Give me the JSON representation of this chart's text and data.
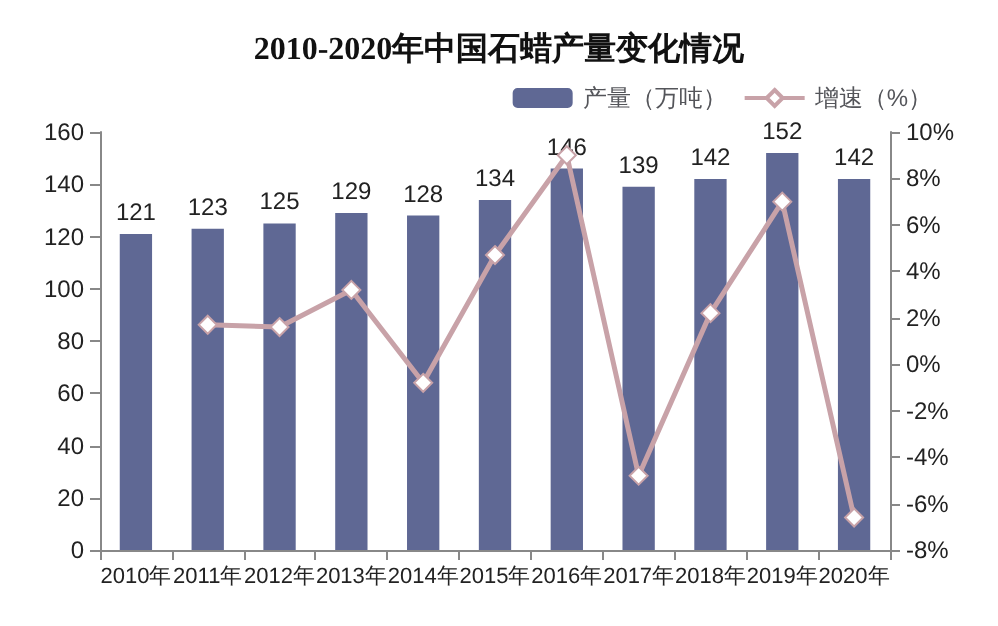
{
  "chart_data": {
    "type": "bar",
    "title": "2010-2020年中国石蜡产量变化情况",
    "categories": [
      "2010年",
      "2011年",
      "2012年",
      "2013年",
      "2014年",
      "2015年",
      "2016年",
      "2017年",
      "2018年",
      "2019年",
      "2020年"
    ],
    "series": [
      {
        "name": "产量（万吨）",
        "color": "#5f6894",
        "values": [
          121,
          123,
          125,
          129,
          128,
          134,
          146,
          139,
          142,
          152,
          142
        ],
        "data_labels": true
      },
      {
        "name": "增速（%）",
        "type": "line",
        "axis": "y2",
        "color": "#c8a2a8",
        "marker": "diamond",
        "values": [
          null,
          1.7,
          1.6,
          3.2,
          -0.8,
          4.7,
          9.0,
          -4.8,
          2.2,
          7.0,
          -6.6
        ]
      }
    ],
    "ylim": [
      0,
      160
    ],
    "yticks": [
      0,
      20,
      40,
      60,
      80,
      100,
      120,
      140,
      160
    ],
    "y2lim": [
      -8,
      10
    ],
    "y2ticks": [
      {
        "value": -8,
        "label": "-8%"
      },
      {
        "value": -6,
        "label": "-6%"
      },
      {
        "value": -4,
        "label": "-4%"
      },
      {
        "value": -2,
        "label": "-2%"
      },
      {
        "value": 0,
        "label": "0%"
      },
      {
        "value": 2,
        "label": "2%"
      },
      {
        "value": 4,
        "label": "4%"
      },
      {
        "value": 6,
        "label": "6%"
      },
      {
        "value": 8,
        "label": "8%"
      },
      {
        "value": 10,
        "label": "10%"
      }
    ],
    "legend": "top right",
    "grid": false
  }
}
